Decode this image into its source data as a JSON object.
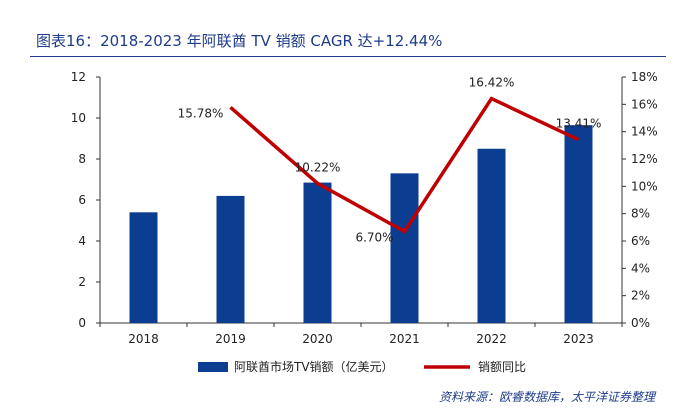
{
  "header": {
    "title": "图表16：2018-2023 年阿联酋 TV 销额 CAGR 达+12.44%"
  },
  "source": "资料来源：欧睿数据库，太平洋证券整理",
  "chart_data": {
    "type": "bar",
    "categories": [
      "2018",
      "2019",
      "2020",
      "2021",
      "2022",
      "2023"
    ],
    "series": [
      {
        "name": "阿联酋市场TV销额（亿美元）",
        "type": "bar",
        "axis": "left",
        "color": "#0b3d91",
        "values": [
          5.4,
          6.2,
          6.85,
          7.3,
          8.5,
          9.65
        ]
      },
      {
        "name": "销额同比",
        "type": "line",
        "axis": "right",
        "color": "#c00000",
        "values": [
          null,
          15.78,
          10.22,
          6.7,
          16.42,
          13.41
        ],
        "labels": [
          "",
          "15.78%",
          "10.22%",
          "6.70%",
          "16.42%",
          "13.41%"
        ]
      }
    ],
    "y_left": {
      "min": 0,
      "max": 12,
      "ticks": [
        "0",
        "2",
        "4",
        "6",
        "8",
        "10",
        "12"
      ]
    },
    "y_right": {
      "min": 0,
      "max": 18,
      "ticks": [
        "0%",
        "2%",
        "4%",
        "6%",
        "8%",
        "10%",
        "12%",
        "14%",
        "16%",
        "18%"
      ]
    },
    "grid": false,
    "legend_position": "bottom"
  }
}
